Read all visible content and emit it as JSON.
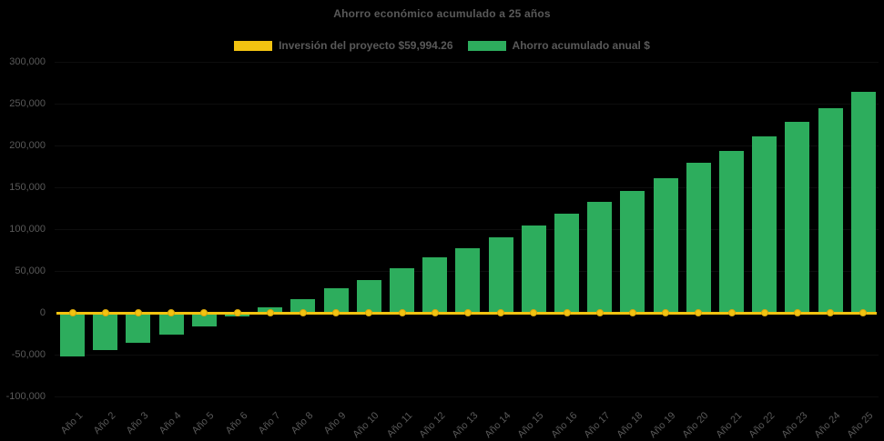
{
  "title": "Ahorro económico acumulado a 25 años",
  "legend": {
    "investment": {
      "label": "Inversión del proyecto $59,994.26",
      "color": "#F2C311"
    },
    "savings": {
      "label": "Ahorro acumulado anual $",
      "color": "#2DAD5D"
    }
  },
  "chart_data": {
    "type": "bar",
    "title": "Ahorro económico acumulado a 25 años",
    "categories": [
      "Año 1",
      "Año 2",
      "Año 3",
      "Año 4",
      "Año 5",
      "Año 6",
      "Año 7",
      "Año 8",
      "Año 9",
      "Año 10",
      "Año 11",
      "Año 12",
      "Año 13",
      "Año 14",
      "Año 15",
      "Año 16",
      "Año 17",
      "Año 18",
      "Año 19",
      "Año 20",
      "Año 21",
      "Año 22",
      "Año 23",
      "Año 24",
      "Año 25"
    ],
    "series": [
      {
        "name": "Inversión del proyecto $59,994.26",
        "type": "line",
        "color": "#F2C311",
        "marker": "circle",
        "values": [
          0,
          0,
          0,
          0,
          0,
          0,
          0,
          0,
          0,
          0,
          0,
          0,
          0,
          0,
          0,
          0,
          0,
          0,
          0,
          0,
          0,
          0,
          0,
          0,
          0
        ]
      },
      {
        "name": "Ahorro acumulado anual $",
        "type": "bar",
        "color": "#2DAD5D",
        "values": [
          -52000,
          -44700,
          -36000,
          -26400,
          -16600,
          -4300,
          6500,
          16300,
          29000,
          39500,
          53600,
          66000,
          76800,
          90500,
          104000,
          118200,
          132600,
          146000,
          161000,
          179000,
          193500,
          211000,
          228000,
          245000,
          264000
        ]
      }
    ],
    "ylim": [
      -100000,
      300000
    ],
    "yticks": [
      {
        "value": 300000,
        "label": "300,000"
      },
      {
        "value": 250000,
        "label": "250,000"
      },
      {
        "value": 200000,
        "label": "200,000"
      },
      {
        "value": 150000,
        "label": "150,000"
      },
      {
        "value": 100000,
        "label": "100,000"
      },
      {
        "value": 50000,
        "label": "50,000"
      },
      {
        "value": 0,
        "label": "0"
      },
      {
        "value": -50000,
        "label": "-50,000"
      },
      {
        "value": -100000,
        "label": "-100,000"
      }
    ],
    "grid": "horizontal-faint",
    "legend_position": "top-center",
    "x_label_rotation": -45,
    "colors": {
      "background": "#000000",
      "text": "#595959"
    }
  }
}
